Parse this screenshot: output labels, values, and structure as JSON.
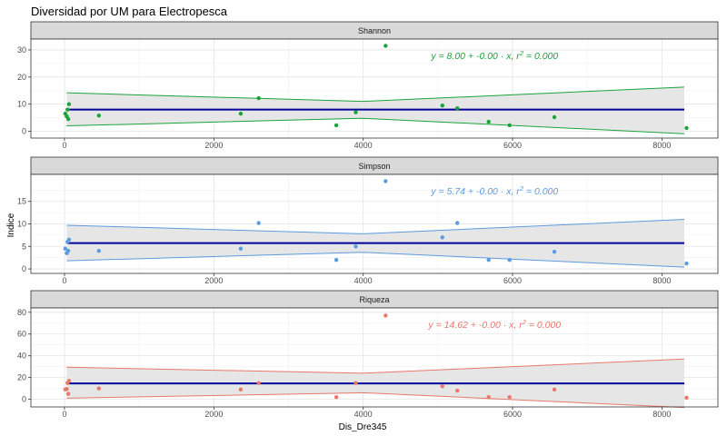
{
  "chart_data": {
    "type": "scatter",
    "title": "Diversidad por UM para Electropesca",
    "xlabel": "Dis_Dre345",
    "ylabel": "Indice",
    "xlim": [
      -450,
      8750
    ],
    "x_ticks": [
      0,
      2000,
      4000,
      6000,
      8000
    ],
    "grid": true,
    "regression_line_color": "#00009a",
    "band_fill_color": "#e6e6e6",
    "panels": [
      {
        "strip_label": "Shannon",
        "color": "#1ca33c",
        "equation": {
          "prefix": "y = 8.00 + -0.00 · x,  r",
          "sup": "2",
          "suffix": " = 0.000"
        },
        "ylim": [
          -2.5,
          34
        ],
        "y_ticks": [
          0,
          10,
          20,
          30
        ],
        "fit": {
          "intercept": 8.0,
          "slope": 0.0
        },
        "band": [
          [
            30,
            14.2,
            2.0
          ],
          [
            4000,
            11.0,
            4.8
          ],
          [
            8300,
            16.3,
            -0.9
          ]
        ],
        "points": [
          [
            10,
            6.5
          ],
          [
            30,
            5.5
          ],
          [
            40,
            8.0
          ],
          [
            50,
            4.5
          ],
          [
            60,
            10.0
          ],
          [
            460,
            5.8
          ],
          [
            2360,
            6.5
          ],
          [
            2600,
            12.2
          ],
          [
            3640,
            2.2
          ],
          [
            3900,
            7.0
          ],
          [
            4300,
            31.5
          ],
          [
            5060,
            9.5
          ],
          [
            5260,
            8.5
          ],
          [
            5680,
            3.5
          ],
          [
            5960,
            2.2
          ],
          [
            6560,
            5.2
          ],
          [
            8330,
            1.2
          ]
        ]
      },
      {
        "strip_label": "Simpson",
        "color": "#5b9be0",
        "equation": {
          "prefix": "y = 5.74 + -0.00 · x,  r",
          "sup": "2",
          "suffix": " = 0.000"
        },
        "ylim": [
          -1,
          21
        ],
        "y_ticks": [
          0,
          5,
          10,
          15
        ],
        "fit": {
          "intercept": 5.74,
          "slope": 0.0
        },
        "band": [
          [
            30,
            9.7,
            1.8
          ],
          [
            4000,
            7.8,
            3.7
          ],
          [
            8300,
            11.0,
            0.4
          ]
        ],
        "points": [
          [
            10,
            4.5
          ],
          [
            30,
            3.5
          ],
          [
            40,
            6.0
          ],
          [
            50,
            4.0
          ],
          [
            60,
            6.5
          ],
          [
            460,
            4.0
          ],
          [
            2360,
            4.5
          ],
          [
            2600,
            10.2
          ],
          [
            3640,
            2.0
          ],
          [
            3900,
            5.0
          ],
          [
            4300,
            19.5
          ],
          [
            5060,
            7.0
          ],
          [
            5260,
            10.2
          ],
          [
            5680,
            2.0
          ],
          [
            5960,
            2.0
          ],
          [
            6560,
            3.8
          ],
          [
            8330,
            1.2
          ]
        ]
      },
      {
        "strip_label": "Riqueza",
        "color": "#e8786c",
        "equation": {
          "prefix": "y = 14.62 + -0.00 · x,  r",
          "sup": "2",
          "suffix": " = 0.000"
        },
        "ylim": [
          -7,
          84
        ],
        "y_ticks": [
          0,
          20,
          40,
          60,
          80
        ],
        "fit": {
          "intercept": 14.62,
          "slope": 0.0
        },
        "band": [
          [
            30,
            29.5,
            1.0
          ],
          [
            4000,
            24.0,
            6.0
          ],
          [
            8300,
            37.0,
            -7.5
          ]
        ],
        "points": [
          [
            10,
            9.0
          ],
          [
            30,
            9.5
          ],
          [
            40,
            15.0
          ],
          [
            50,
            5.0
          ],
          [
            60,
            17.0
          ],
          [
            460,
            10.0
          ],
          [
            2360,
            9.0
          ],
          [
            2600,
            15.0
          ],
          [
            3640,
            2.0
          ],
          [
            3900,
            15.0
          ],
          [
            4300,
            77.0
          ],
          [
            5060,
            12.0
          ],
          [
            5260,
            8.0
          ],
          [
            5680,
            2.0
          ],
          [
            5960,
            2.0
          ],
          [
            6560,
            9.0
          ],
          [
            8330,
            1.5
          ]
        ]
      }
    ]
  }
}
